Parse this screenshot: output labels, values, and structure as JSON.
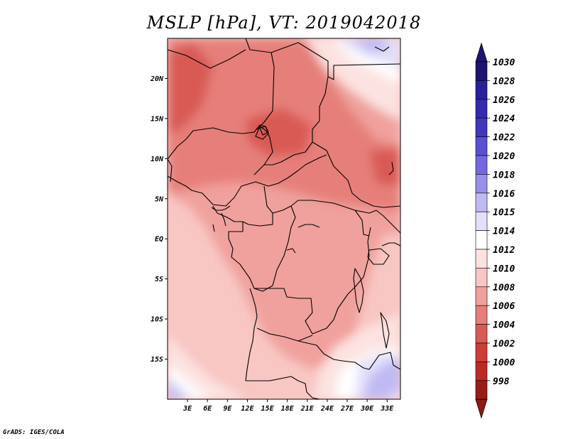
{
  "title": "MSLP [hPa], VT: 2019042018",
  "credit": "GrADS: IGES/COLA",
  "map": {
    "lon_range": [
      0,
      35
    ],
    "lat_range": [
      -20,
      25
    ],
    "lat_ticks": [
      {
        "value": 20,
        "label": "20N"
      },
      {
        "value": 15,
        "label": "15N"
      },
      {
        "value": 10,
        "label": "10N"
      },
      {
        "value": 5,
        "label": "5N"
      },
      {
        "value": 0,
        "label": "EQ"
      },
      {
        "value": -5,
        "label": "5S"
      },
      {
        "value": -10,
        "label": "10S"
      },
      {
        "value": -15,
        "label": "15S"
      }
    ],
    "lon_ticks": [
      {
        "value": 3,
        "label": "3E"
      },
      {
        "value": 6,
        "label": "6E"
      },
      {
        "value": 9,
        "label": "9E"
      },
      {
        "value": 12,
        "label": "12E"
      },
      {
        "value": 15,
        "label": "15E"
      },
      {
        "value": 18,
        "label": "18E"
      },
      {
        "value": 21,
        "label": "21E"
      },
      {
        "value": 24,
        "label": "24E"
      },
      {
        "value": 27,
        "label": "27E"
      },
      {
        "value": 30,
        "label": "30E"
      },
      {
        "value": 33,
        "label": "33E"
      }
    ]
  },
  "colorbar": {
    "levels": [
      {
        "label": "1030",
        "color": "#1e1470"
      },
      {
        "label": "1028",
        "color": "#2a1f9c"
      },
      {
        "label": "1026",
        "color": "#3529ae"
      },
      {
        "label": "1024",
        "color": "#4236be"
      },
      {
        "label": "1022",
        "color": "#5a50d2"
      },
      {
        "label": "1020",
        "color": "#7468e0"
      },
      {
        "label": "1018",
        "color": "#9990ec"
      },
      {
        "label": "1016",
        "color": "#bfbaf4"
      },
      {
        "label": "1015",
        "color": "#e2e0fb"
      },
      {
        "label": "1014",
        "color": "#ffffff"
      },
      {
        "label": "1012",
        "color": "#fce3e1"
      },
      {
        "label": "1010",
        "color": "#f8c6c3"
      },
      {
        "label": "1008",
        "color": "#f0a19d"
      },
      {
        "label": "1006",
        "color": "#e67f79"
      },
      {
        "label": "1004",
        "color": "#d95a55"
      },
      {
        "label": "1002",
        "color": "#cf3d37"
      },
      {
        "label": "1000",
        "color": "#bd2a24"
      },
      {
        "label": "998",
        "color": "#9c1c16"
      }
    ],
    "top_arrow_color": "#1e1470",
    "bottom_arrow_color": "#8a1a14"
  },
  "colors": {
    "low_dark": "#d95a55",
    "low": "#e67f79",
    "mid": "#f0a19d",
    "mid_light": "#f8c6c3",
    "light": "#fce3e1",
    "neutral": "#ffffff",
    "high_light": "#e2e0fb",
    "high": "#bfbaf4",
    "border": "#000000"
  }
}
